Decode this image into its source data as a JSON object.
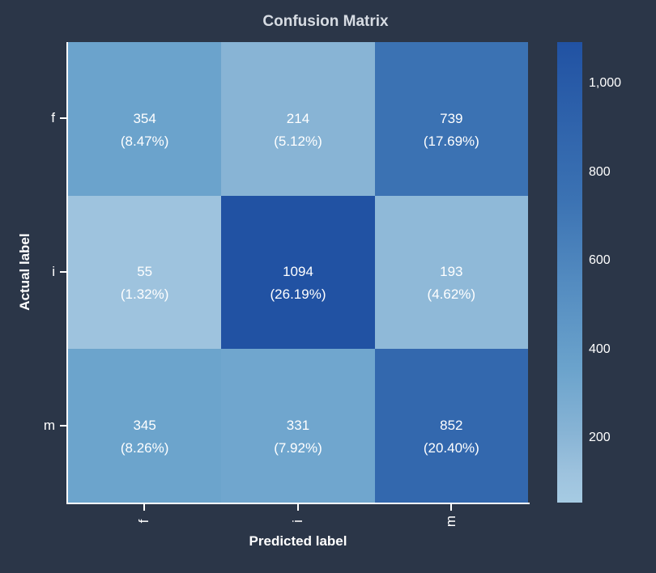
{
  "title": "Confusion Matrix",
  "colors": {
    "background": "#2b3648",
    "title_text": "#d7dce3",
    "axis_text": "#ffffff",
    "annotation_text": "#ffffff",
    "spine": "#ffffff"
  },
  "chart_data": {
    "type": "heatmap",
    "title": "Confusion Matrix",
    "xlabel": "Predicted label",
    "ylabel": "Actual label",
    "x_categories": [
      "f",
      "i",
      "m"
    ],
    "y_categories": [
      "f",
      "i",
      "m"
    ],
    "values": [
      [
        354,
        214,
        739
      ],
      [
        55,
        1094,
        193
      ],
      [
        345,
        331,
        852
      ]
    ],
    "percents": [
      [
        8.47,
        5.12,
        17.69
      ],
      [
        1.32,
        26.19,
        4.62
      ],
      [
        8.26,
        7.92,
        20.4
      ]
    ],
    "colormap": "Blues",
    "color_range": {
      "min": 55,
      "max": 1094
    },
    "grid": false,
    "cells": [
      {
        "value": "354",
        "pct": "(8.47%)",
        "color": "#6ba3cc"
      },
      {
        "value": "214",
        "pct": "(5.12%)",
        "color": "#88b4d5"
      },
      {
        "value": "739",
        "pct": "(17.69%)",
        "color": "#3b72b3"
      },
      {
        "value": "55",
        "pct": "(1.32%)",
        "color": "#9ec3de"
      },
      {
        "value": "1094",
        "pct": "(26.19%)",
        "color": "#2152a3"
      },
      {
        "value": "193",
        "pct": "(4.62%)",
        "color": "#8fb9d8"
      },
      {
        "value": "345",
        "pct": "(8.26%)",
        "color": "#6ca4cc"
      },
      {
        "value": "331",
        "pct": "(7.92%)",
        "color": "#70a6ce"
      },
      {
        "value": "852",
        "pct": "(20.40%)",
        "color": "#3368ae"
      }
    ],
    "colorbar": {
      "position": "right",
      "ticks": [
        "1,000",
        "800",
        "600",
        "400",
        "200"
      ],
      "tick_values": [
        1000,
        800,
        600,
        400,
        200
      ],
      "gradient_top_to_bottom": [
        "#2152a3 0%",
        "#3368ae 23%",
        "#3b72b3 34%",
        "#538bc0 52%",
        "#6ba3cc 71%",
        "#88b4d5 85%",
        "#9ec3de 94%",
        "#a6cbe3 100%"
      ]
    }
  }
}
